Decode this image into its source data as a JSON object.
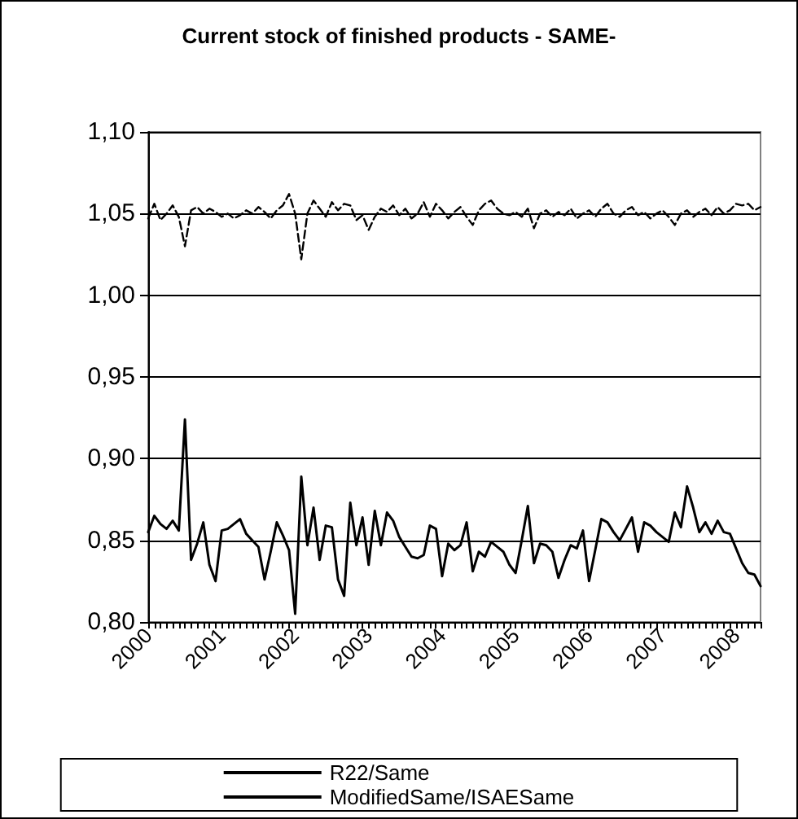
{
  "chart_data": {
    "type": "line",
    "title": "Current stock of finished products - SAME-",
    "categories": [
      "2000",
      null,
      null,
      null,
      null,
      null,
      null,
      null,
      null,
      null,
      null,
      null,
      "2001",
      null,
      null,
      null,
      null,
      null,
      null,
      null,
      null,
      null,
      null,
      null,
      "2002",
      null,
      null,
      null,
      null,
      null,
      null,
      null,
      null,
      null,
      null,
      null,
      "2003",
      null,
      null,
      null,
      null,
      null,
      null,
      null,
      null,
      null,
      null,
      null,
      "2004",
      null,
      null,
      null,
      null,
      null,
      null,
      null,
      null,
      null,
      null,
      null,
      "2005",
      null,
      null,
      null,
      null,
      null,
      null,
      null,
      null,
      null,
      null,
      null,
      "2006",
      null,
      null,
      null,
      null,
      null,
      null,
      null,
      null,
      null,
      null,
      null,
      "2007",
      null,
      null,
      null,
      null,
      null,
      null,
      null,
      null,
      null,
      null,
      null,
      "2008",
      null,
      null,
      null,
      null
    ],
    "series": [
      {
        "name": "R22/Same",
        "color": "#000000",
        "line_style": "solid",
        "values": [
          0.855,
          0.865,
          0.86,
          0.857,
          0.862,
          0.856,
          0.924,
          0.838,
          0.848,
          0.861,
          0.835,
          0.825,
          0.856,
          0.857,
          0.86,
          0.863,
          0.854,
          0.85,
          0.846,
          0.826,
          0.843,
          0.861,
          0.853,
          0.844,
          0.805,
          0.889,
          0.847,
          0.87,
          0.838,
          0.859,
          0.858,
          0.826,
          0.816,
          0.873,
          0.847,
          0.864,
          0.835,
          0.868,
          0.847,
          0.867,
          0.862,
          0.852,
          0.846,
          0.84,
          0.839,
          0.841,
          0.859,
          0.857,
          0.828,
          0.848,
          0.844,
          0.847,
          0.861,
          0.831,
          0.843,
          0.84,
          0.849,
          0.846,
          0.843,
          0.835,
          0.83,
          0.85,
          0.871,
          0.836,
          0.848,
          0.847,
          0.843,
          0.827,
          0.838,
          0.847,
          0.845,
          0.856,
          0.825,
          0.844,
          0.863,
          0.861,
          0.855,
          0.85,
          0.857,
          0.864,
          0.843,
          0.861,
          0.859,
          0.855,
          0.852,
          0.849,
          0.867,
          0.858,
          0.883,
          0.87,
          0.855,
          0.861,
          0.854,
          0.862,
          0.855,
          0.854,
          0.845,
          0.836,
          0.83,
          0.829,
          0.822
        ]
      },
      {
        "name": "ModifiedSame/ISAESame",
        "color": "#000000",
        "line_style": "dashed",
        "values": [
          1.047,
          1.056,
          1.046,
          1.05,
          1.055,
          1.048,
          1.03,
          1.052,
          1.054,
          1.05,
          1.053,
          1.051,
          1.048,
          1.05,
          1.047,
          1.049,
          1.052,
          1.05,
          1.054,
          1.051,
          1.047,
          1.052,
          1.055,
          1.062,
          1.05,
          1.022,
          1.05,
          1.058,
          1.053,
          1.048,
          1.057,
          1.052,
          1.056,
          1.055,
          1.046,
          1.049,
          1.04,
          1.048,
          1.053,
          1.051,
          1.055,
          1.049,
          1.053,
          1.047,
          1.05,
          1.057,
          1.048,
          1.056,
          1.052,
          1.047,
          1.051,
          1.054,
          1.048,
          1.043,
          1.052,
          1.056,
          1.058,
          1.053,
          1.05,
          1.049,
          1.051,
          1.048,
          1.053,
          1.041,
          1.05,
          1.052,
          1.048,
          1.051,
          1.049,
          1.053,
          1.047,
          1.05,
          1.052,
          1.048,
          1.053,
          1.056,
          1.05,
          1.048,
          1.052,
          1.054,
          1.049,
          1.051,
          1.047,
          1.05,
          1.052,
          1.048,
          1.043,
          1.05,
          1.052,
          1.048,
          1.051,
          1.053,
          1.049,
          1.054,
          1.05,
          1.052,
          1.056,
          1.055,
          1.056,
          1.052,
          1.054
        ]
      }
    ],
    "ylim": [
      0.8,
      1.1
    ],
    "yticks": [
      {
        "value": 0.8,
        "label": "0,80"
      },
      {
        "value": 0.85,
        "label": "0,85"
      },
      {
        "value": 0.9,
        "label": "0,90"
      },
      {
        "value": 0.95,
        "label": "0,95"
      },
      {
        "value": 1.0,
        "label": "1,00"
      },
      {
        "value": 1.05,
        "label": "1,05"
      },
      {
        "value": 1.1,
        "label": "1,10"
      }
    ],
    "grid": "y",
    "legend": "bottom",
    "marker": "none"
  }
}
